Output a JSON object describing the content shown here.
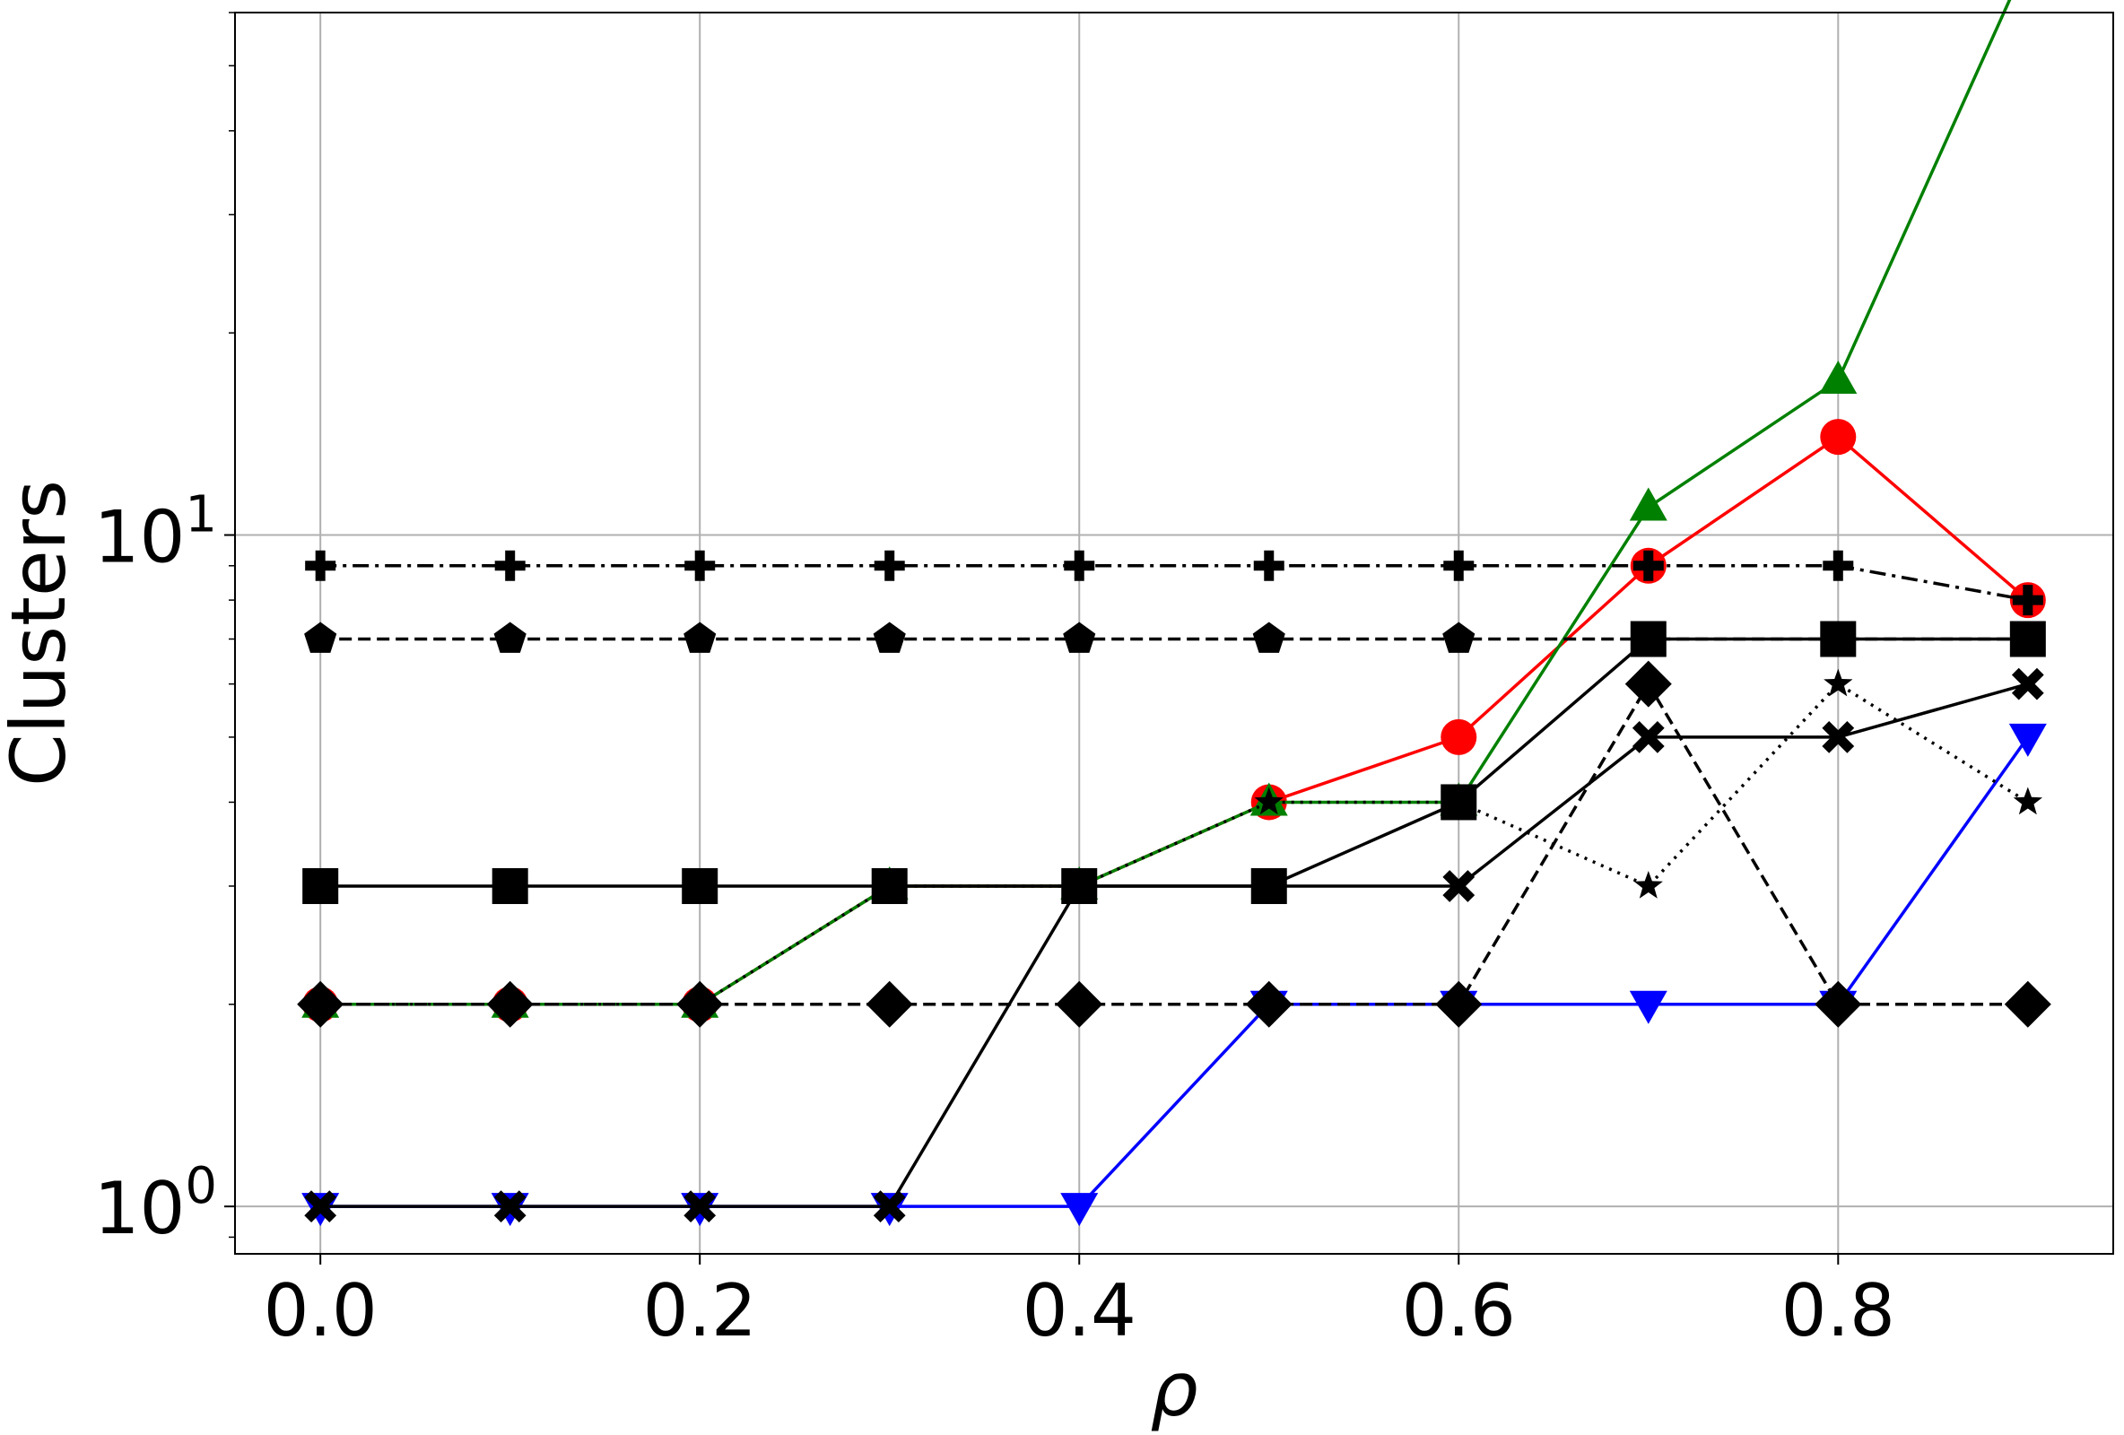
{
  "chart_data": {
    "type": "line",
    "xlabel": "ρ",
    "ylabel": "Clusters",
    "xlim": [
      -0.045,
      0.945
    ],
    "ylim": [
      0.85,
      60
    ],
    "yscale": "log",
    "grid": true,
    "x": [
      0.0,
      0.1,
      0.2,
      0.3,
      0.4,
      0.5,
      0.6,
      0.7,
      0.8,
      0.9
    ],
    "x_ticks": [
      {
        "value": 0.0,
        "label": "0.0"
      },
      {
        "value": 0.2,
        "label": "0.2"
      },
      {
        "value": 0.4,
        "label": "0.4"
      },
      {
        "value": 0.6,
        "label": "0.6"
      },
      {
        "value": 0.8,
        "label": "0.8"
      }
    ],
    "y_ticks": [
      {
        "value": 1,
        "base": "10",
        "exp": "0"
      },
      {
        "value": 10,
        "base": "10",
        "exp": "1"
      }
    ],
    "series": [
      {
        "color": "#ff0000",
        "marker": "circle",
        "dash": "solid",
        "values": [
          2,
          2,
          2,
          3,
          3,
          4,
          5,
          9,
          14,
          8
        ]
      },
      {
        "color": "#008000",
        "marker": "triangle-up",
        "dash": "solid",
        "values": [
          2,
          2,
          2,
          3,
          3,
          4,
          4,
          11,
          17,
          72
        ]
      },
      {
        "color": "#0000ff",
        "marker": "triangle-down",
        "dash": "solid",
        "values": [
          1,
          1,
          1,
          1,
          1,
          2,
          2,
          2,
          2,
          5
        ]
      },
      {
        "color": "#000000",
        "marker": "star",
        "dash": "dotted",
        "values": [
          2,
          2,
          2,
          3,
          3,
          4,
          4,
          3,
          6,
          4
        ]
      },
      {
        "color": "#000000",
        "marker": "x",
        "dash": "solid",
        "values": [
          1,
          1,
          1,
          1,
          3,
          3,
          3,
          5,
          5,
          6
        ]
      },
      {
        "color": "#000000",
        "marker": "plus",
        "dash": "dashdot",
        "values": [
          9,
          9,
          9,
          9,
          9,
          9,
          9,
          9,
          9,
          8
        ]
      },
      {
        "color": "#000000",
        "marker": "pentagon",
        "dash": "dashed",
        "values": [
          7,
          7,
          7,
          7,
          7,
          7,
          7,
          7,
          7,
          7
        ]
      },
      {
        "color": "#000000",
        "marker": "square",
        "dash": "solid",
        "values": [
          3,
          3,
          3,
          3,
          3,
          3,
          4,
          7,
          7,
          7
        ]
      },
      {
        "color": "#000000",
        "marker": "diamond",
        "dash": "dashed",
        "values": [
          2,
          2,
          2,
          2,
          2,
          2,
          2,
          6,
          2,
          2
        ]
      }
    ]
  }
}
